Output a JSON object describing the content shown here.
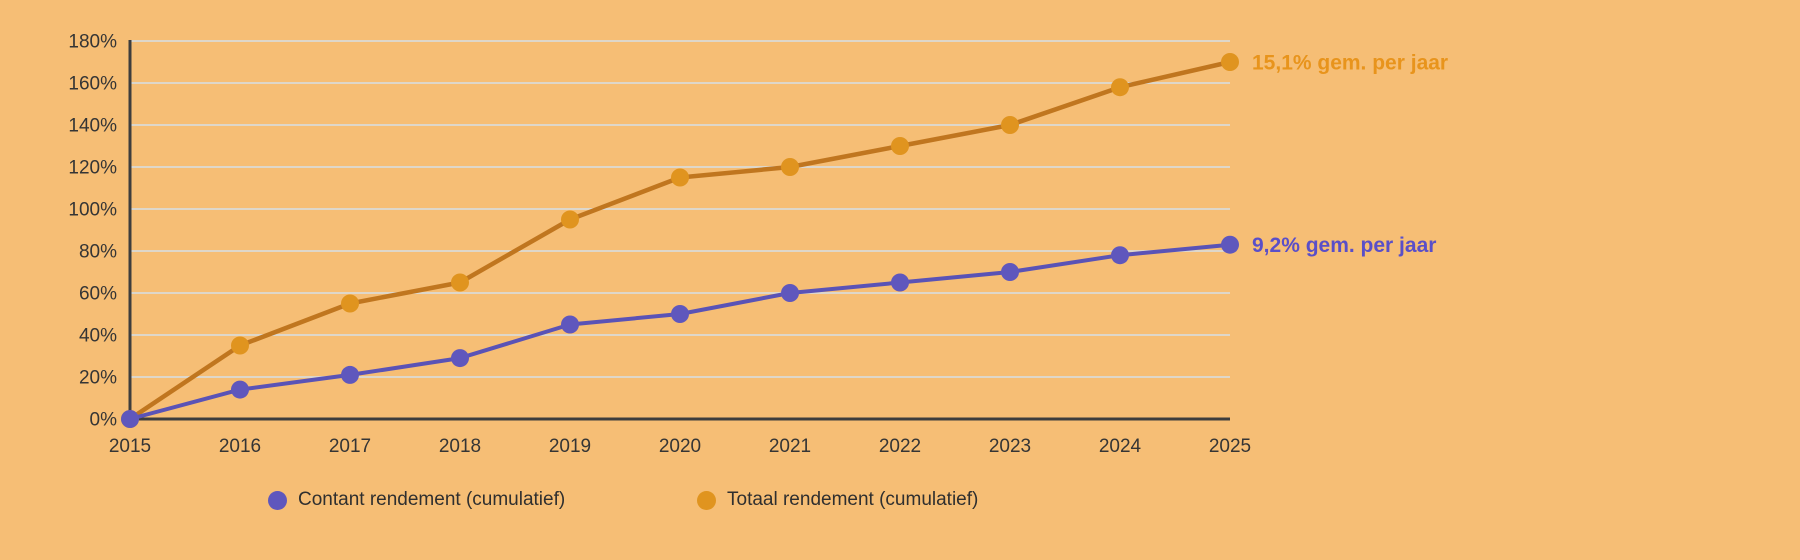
{
  "colors": {
    "background": "#f6be75",
    "grid": "#ded7ca",
    "axis": "#3d3d3d",
    "tick_label": "#353535",
    "legend_label": "#2f2f2f"
  },
  "chart_data": {
    "type": "line",
    "x": [
      "2015",
      "2016",
      "2017",
      "2018",
      "2019",
      "2020",
      "2021",
      "2022",
      "2023",
      "2024",
      "2025"
    ],
    "y_ticks": [
      "0%",
      "20%",
      "40%",
      "60%",
      "80%",
      "100%",
      "120%",
      "140%",
      "160%",
      "180%"
    ],
    "ylim": [
      0,
      180
    ],
    "ylabel": "",
    "xlabel": "",
    "grid": true,
    "legend_position": "bottom",
    "series": [
      {
        "key": "contant",
        "name": "Contant rendement (cumulatief)",
        "values": [
          0,
          14,
          21,
          29,
          45,
          50,
          60,
          65,
          70,
          78,
          83
        ],
        "line_color": "#5a53b6",
        "marker_color": "#5f57bd",
        "annotation": "9,2% gem. per jaar",
        "annotation_color": "#5a4fc8"
      },
      {
        "key": "totaal",
        "name": "Totaal rendement (cumulatief)",
        "values": [
          0,
          35,
          55,
          65,
          95,
          115,
          120,
          130,
          140,
          158,
          170
        ],
        "line_color": "#c0761f",
        "marker_color": "#e0941f",
        "annotation": "15,1% gem. per jaar",
        "annotation_color": "#e8941c"
      }
    ]
  }
}
